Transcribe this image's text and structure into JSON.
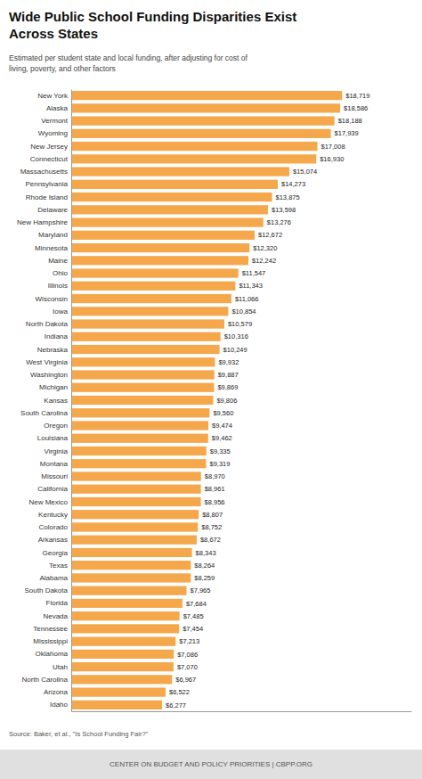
{
  "chart_data": {
    "type": "bar",
    "orientation": "horizontal",
    "title": "Wide Public School Funding Disparities Exist\nAcross States",
    "subtitle": "Estimated per student state and local funding, after adjusting for cost of\nliving, poverty, and other factors",
    "source": "Source: Baker, et al., \"Is School Funding Fair?\"",
    "footer": "CENTER ON BUDGET AND POLICY PRIORITIES | CBPP.ORG",
    "color": "#F5A84B",
    "categories": [
      "New York",
      "Alaska",
      "Vermont",
      "Wyoming",
      "New Jersey",
      "Connecticut",
      "Massachusetts",
      "Pennsylvania",
      "Rhode Island",
      "Delaware",
      "New Hampshire",
      "Maryland",
      "Minnesota",
      "Maine",
      "Ohio",
      "Illinois",
      "Wisconsin",
      "Iowa",
      "North Dakota",
      "Indiana",
      "Nebraska",
      "West Virginia",
      "Washington",
      "Michigan",
      "Kansas",
      "South Carolina",
      "Oregon",
      "Louisiana",
      "Virginia",
      "Montana",
      "Missouri",
      "California",
      "New Mexico",
      "Kentucky",
      "Colorado",
      "Arkansas",
      "Georgia",
      "Texas",
      "Alabama",
      "South Dakota",
      "Florida",
      "Nevada",
      "Tennessee",
      "Mississippi",
      "Oklahoma",
      "Utah",
      "North Carolina",
      "Arizona",
      "Idaho"
    ],
    "values": [
      18719,
      18586,
      18188,
      17939,
      17008,
      16930,
      15074,
      14273,
      13875,
      13598,
      13276,
      12672,
      12320,
      12242,
      11547,
      11343,
      11066,
      10854,
      10579,
      10316,
      10249,
      9932,
      9887,
      9869,
      9806,
      9560,
      9474,
      9462,
      9335,
      9319,
      8970,
      8961,
      8956,
      8807,
      8752,
      8672,
      8343,
      8264,
      8259,
      7965,
      7684,
      7485,
      7454,
      7213,
      7086,
      7070,
      6967,
      6522,
      6277
    ],
    "value_labels": [
      "$18,719",
      "$18,586",
      "$18,188",
      "$17,939",
      "$17,008",
      "$16,930",
      "$15,074",
      "$14,273",
      "$13,875",
      "$13,598",
      "$13,276",
      "$12,672",
      "$12,320",
      "$12,242",
      "$11,547",
      "$11,343",
      "$11,066",
      "$10,854",
      "$10,579",
      "$10,316",
      "$10,249",
      "$9,932",
      "$9,887",
      "$9,869",
      "$9,806",
      "$9,560",
      "$9,474",
      "$9,462",
      "$9,335",
      "$9,319",
      "$8,970",
      "$8,961",
      "$8,956",
      "$8,807",
      "$8,752",
      "$8,672",
      "$8,343",
      "$8,264",
      "$8,259",
      "$7,965",
      "$7,684",
      "$7,485",
      "$7,454",
      "$7,213",
      "$7,086",
      "$7,070",
      "$6,967",
      "$6,522",
      "$6,277"
    ],
    "data_labels": true,
    "xlim": [
      0,
      23500
    ],
    "grid": false,
    "tick_labels": "y"
  }
}
